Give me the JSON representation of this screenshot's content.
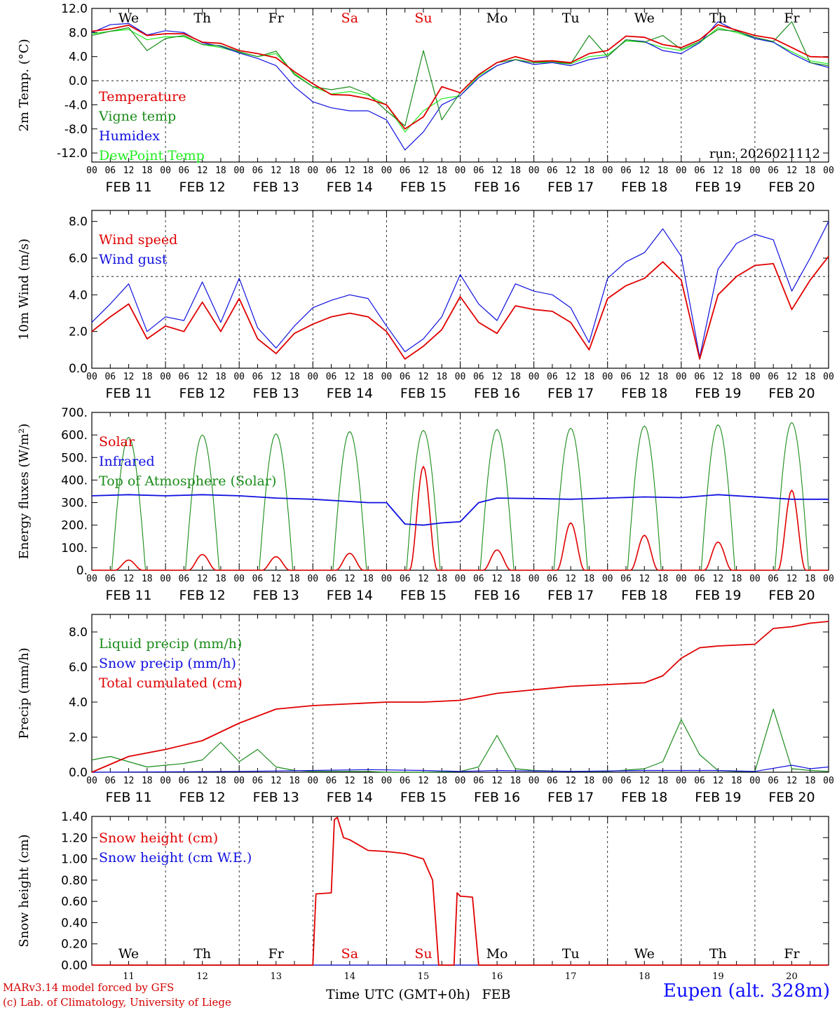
{
  "location": "Eupen (alt. 328m)",
  "credits": [
    "MARv3.14 model forced by GFS",
    "(c) Lab. of Climatology, University of Liege"
  ],
  "run_label": "run: 2026021112",
  "x_axis_title": "Time UTC (GMT+0h)",
  "x_axis_month": "FEB",
  "weekday_labels": [
    "We",
    "Th",
    "Fr",
    "Sa",
    "Su",
    "Mo",
    "Tu",
    "We",
    "Th",
    "Fr"
  ],
  "weekend_flags": [
    false,
    false,
    false,
    true,
    true,
    false,
    false,
    false,
    false,
    false
  ],
  "date_labels": [
    "FEB 11",
    "FEB 12",
    "FEB 13",
    "FEB 14",
    "FEB 15",
    "FEB 16",
    "FEB 17",
    "FEB 18",
    "FEB 19",
    "FEB 20"
  ],
  "day_numbers": [
    "11",
    "12",
    "13",
    "14",
    "15",
    "16",
    "17",
    "18",
    "19",
    "20"
  ],
  "hour_ticks": [
    "00",
    "06",
    "12",
    "18"
  ],
  "colors": {
    "red": "#e00000",
    "green": "#1a8c1a",
    "blue": "#1010e0",
    "lightgreen": "#22ee22",
    "axis": "#000000"
  },
  "chart_data": [
    {
      "id": "temperature",
      "type": "line",
      "ylabel": "2m Temp. (°C)",
      "ylim": [
        -13.5,
        12.0
      ],
      "ytick_labels": [
        "12.0",
        "8.0",
        "4.0",
        "0.0",
        "-4.0",
        "-8.0",
        "-12.0"
      ],
      "ytick_values": [
        12,
        8,
        4,
        0,
        -4,
        -8,
        -12
      ],
      "ref_line": 0,
      "x_unit": "hours from 2026-02-11 00 UTC",
      "series": [
        {
          "name": "Temperature",
          "color": "red",
          "x": [
            0,
            6,
            12,
            18,
            24,
            30,
            36,
            42,
            48,
            54,
            60,
            66,
            72,
            78,
            84,
            90,
            96,
            102,
            108,
            114,
            120,
            126,
            132,
            138,
            144,
            150,
            156,
            162,
            168,
            174,
            180,
            186,
            192,
            198,
            204,
            210,
            216,
            222,
            228,
            234,
            240
          ],
          "values": [
            8.2,
            8.6,
            9.2,
            7.5,
            7.8,
            7.8,
            6.4,
            6.2,
            5.0,
            4.5,
            3.8,
            1.5,
            -0.5,
            -2.3,
            -2.4,
            -3.0,
            -4.0,
            -8.0,
            -6.0,
            -1.0,
            -2.0,
            1.0,
            3.0,
            4.0,
            3.2,
            3.3,
            3.0,
            4.5,
            5.0,
            7.4,
            7.2,
            6.0,
            5.5,
            6.8,
            9.3,
            8.4,
            7.5,
            7.0,
            5.5,
            4.0,
            3.9
          ]
        },
        {
          "name": "Vigne temp",
          "color": "green",
          "x": [
            0,
            6,
            12,
            18,
            24,
            30,
            36,
            42,
            48,
            54,
            60,
            66,
            72,
            78,
            84,
            90,
            96,
            102,
            108,
            114,
            120,
            126,
            132,
            138,
            144,
            150,
            156,
            162,
            168,
            174,
            180,
            186,
            192,
            198,
            204,
            210,
            216,
            222,
            228,
            234,
            240
          ],
          "values": [
            7.5,
            8.2,
            8.8,
            5.0,
            7.0,
            7.5,
            6.0,
            5.8,
            4.8,
            4.0,
            4.9,
            1.0,
            -1.0,
            -1.5,
            -1.0,
            -2.2,
            -5.0,
            -7.5,
            5.0,
            -6.5,
            -2.0,
            1.0,
            3.0,
            3.5,
            3.0,
            3.2,
            2.8,
            7.5,
            4.0,
            6.8,
            6.4,
            7.5,
            5.2,
            6.5,
            8.5,
            8.2,
            7.2,
            6.5,
            9.8,
            3.0,
            2.5
          ]
        },
        {
          "name": "Humidex",
          "color": "blue",
          "x": [
            0,
            6,
            12,
            18,
            24,
            30,
            36,
            42,
            48,
            54,
            60,
            66,
            72,
            78,
            84,
            90,
            96,
            102,
            108,
            114,
            120,
            126,
            132,
            138,
            144,
            150,
            156,
            162,
            168,
            174,
            180,
            186,
            192,
            198,
            204,
            210,
            216,
            222,
            228,
            234,
            240
          ],
          "values": [
            8.0,
            9.3,
            9.5,
            7.6,
            8.3,
            8.0,
            6.3,
            5.7,
            4.6,
            3.7,
            2.5,
            -1.0,
            -3.5,
            -4.5,
            -5.0,
            -5.0,
            -6.5,
            -11.5,
            -8.5,
            -4.0,
            -2.5,
            0.5,
            2.5,
            3.5,
            2.7,
            3.0,
            2.5,
            3.5,
            4.0,
            6.8,
            6.5,
            5.0,
            4.5,
            6.3,
            9.8,
            8.3,
            7.0,
            6.4,
            4.5,
            3.0,
            2.2
          ]
        },
        {
          "name": "DewPoint Temp",
          "color": "lightgreen",
          "x": [
            0,
            6,
            12,
            18,
            24,
            30,
            36,
            42,
            48,
            54,
            60,
            66,
            72,
            78,
            84,
            90,
            96,
            102,
            108,
            114,
            120,
            126,
            132,
            138,
            144,
            150,
            156,
            162,
            168,
            174,
            180,
            186,
            192,
            198,
            204,
            210,
            216,
            222,
            228,
            234,
            240
          ],
          "values": [
            7.8,
            8.2,
            8.5,
            6.8,
            7.3,
            7.3,
            6.0,
            5.5,
            4.7,
            4.0,
            4.5,
            1.2,
            -1.0,
            -2.2,
            -1.8,
            -2.4,
            -4.0,
            -8.5,
            -5.0,
            -3.0,
            -2.5,
            0.8,
            2.5,
            3.5,
            3.0,
            3.0,
            2.8,
            4.0,
            4.3,
            6.6,
            6.4,
            5.5,
            5.0,
            6.3,
            8.8,
            8.0,
            7.0,
            6.4,
            4.8,
            3.3,
            2.8
          ]
        }
      ]
    },
    {
      "id": "wind",
      "type": "line",
      "ylabel": "10m Wind (m/s)",
      "ylim": [
        0,
        8.6
      ],
      "ytick_labels": [
        "8.0",
        "6.0",
        "4.0",
        "2.0",
        "0.0"
      ],
      "ytick_values": [
        8,
        6,
        4,
        2,
        0
      ],
      "ref_line": 5,
      "series": [
        {
          "name": "Wind speed",
          "color": "red",
          "x": [
            0,
            6,
            12,
            18,
            24,
            30,
            36,
            42,
            48,
            54,
            60,
            66,
            72,
            78,
            84,
            90,
            96,
            102,
            108,
            114,
            120,
            126,
            132,
            138,
            144,
            150,
            156,
            162,
            168,
            174,
            180,
            186,
            192,
            198,
            204,
            210,
            216,
            222,
            228,
            234,
            240
          ],
          "values": [
            2.0,
            2.8,
            3.5,
            1.6,
            2.3,
            2.0,
            3.6,
            2.0,
            3.8,
            1.6,
            0.8,
            1.9,
            2.4,
            2.8,
            3.0,
            2.8,
            2.0,
            0.5,
            1.2,
            2.1,
            3.9,
            2.5,
            1.9,
            3.4,
            3.2,
            3.1,
            2.5,
            1.0,
            3.8,
            4.5,
            4.9,
            5.8,
            4.8,
            0.5,
            4.0,
            5.0,
            5.6,
            5.7,
            3.2,
            4.8,
            6.1
          ]
        },
        {
          "name": "Wind gust",
          "color": "blue",
          "x": [
            0,
            6,
            12,
            18,
            24,
            30,
            36,
            42,
            48,
            54,
            60,
            66,
            72,
            78,
            84,
            90,
            96,
            102,
            108,
            114,
            120,
            126,
            132,
            138,
            144,
            150,
            156,
            162,
            168,
            174,
            180,
            186,
            192,
            198,
            204,
            210,
            216,
            222,
            228,
            234,
            240
          ],
          "values": [
            2.5,
            3.5,
            4.6,
            2.0,
            2.8,
            2.6,
            4.7,
            2.5,
            4.9,
            2.2,
            1.1,
            2.3,
            3.3,
            3.7,
            4.0,
            3.8,
            2.3,
            0.9,
            1.6,
            2.8,
            5.1,
            3.5,
            2.6,
            4.6,
            4.2,
            4.0,
            3.3,
            1.4,
            4.9,
            5.8,
            6.3,
            7.6,
            6.1,
            0.6,
            5.4,
            6.8,
            7.3,
            7.0,
            4.2,
            6.0,
            8.0
          ]
        }
      ]
    },
    {
      "id": "energy",
      "type": "line",
      "ylabel": "Energy fluxes (W/m²)",
      "ylim": [
        0,
        700
      ],
      "ytick_labels": [
        "700.",
        "600.",
        "500.",
        "400.",
        "300.",
        "200.",
        "100.",
        "0."
      ],
      "ytick_values": [
        700,
        600,
        500,
        400,
        300,
        200,
        100,
        0
      ],
      "series": [
        {
          "name": "Solar",
          "color": "red",
          "daily_peaks": [
            45,
            70,
            60,
            75,
            460,
            90,
            210,
            155,
            125,
            355
          ]
        },
        {
          "name": "Infrared",
          "color": "blue",
          "x": [
            0,
            12,
            24,
            36,
            48,
            60,
            72,
            84,
            90,
            96,
            102,
            108,
            114,
            120,
            126,
            132,
            144,
            156,
            168,
            180,
            192,
            204,
            216,
            228,
            240
          ],
          "values": [
            330,
            335,
            330,
            335,
            330,
            320,
            315,
            305,
            300,
            300,
            205,
            200,
            210,
            215,
            300,
            320,
            318,
            315,
            320,
            325,
            322,
            335,
            325,
            315,
            315
          ]
        },
        {
          "name": "Top of Atmosphere (Solar)",
          "color": "green",
          "daily_peaks": [
            590,
            600,
            605,
            615,
            620,
            625,
            630,
            640,
            645,
            655
          ]
        }
      ]
    },
    {
      "id": "precip",
      "type": "line",
      "ylabel": "Precip (mm/h)",
      "ylim": [
        0,
        9.0
      ],
      "ytick_labels": [
        "8.0",
        "6.0",
        "4.0",
        "2.0",
        "0.0"
      ],
      "ytick_values": [
        8,
        6,
        4,
        2,
        0
      ],
      "series": [
        {
          "name": "Liquid precip (mm/h)",
          "color": "green",
          "x": [
            0,
            6,
            12,
            18,
            24,
            30,
            36,
            42,
            48,
            54,
            60,
            66,
            72,
            78,
            84,
            90,
            96,
            108,
            120,
            126,
            132,
            138,
            144,
            156,
            168,
            180,
            186,
            192,
            198,
            204,
            210,
            216,
            222,
            228,
            234,
            240
          ],
          "values": [
            0.7,
            0.9,
            0.6,
            0.3,
            0.4,
            0.5,
            0.7,
            1.7,
            0.6,
            1.3,
            0.3,
            0.1,
            0.05,
            0.05,
            0.05,
            0.05,
            0.0,
            0.0,
            0.05,
            0.3,
            2.1,
            0.2,
            0.1,
            0.05,
            0.05,
            0.2,
            0.6,
            3.0,
            1.0,
            0.1,
            0.05,
            0.05,
            3.6,
            0.2,
            0.1,
            0.05
          ]
        },
        {
          "name": "Snow precip (mm/h)",
          "color": "blue",
          "x": [
            0,
            48,
            72,
            90,
            108,
            120,
            132,
            156,
            180,
            204,
            216,
            228,
            234,
            240
          ],
          "values": [
            0.0,
            0.05,
            0.1,
            0.15,
            0.1,
            0.05,
            0.1,
            0.05,
            0.1,
            0.1,
            0.05,
            0.4,
            0.2,
            0.3
          ]
        },
        {
          "name": "Total cumulated (cm)",
          "color": "red",
          "x": [
            0,
            12,
            24,
            36,
            48,
            60,
            72,
            84,
            96,
            108,
            120,
            132,
            144,
            156,
            168,
            180,
            186,
            192,
            198,
            204,
            216,
            222,
            228,
            234,
            240
          ],
          "values": [
            0.0,
            0.9,
            1.3,
            1.8,
            2.8,
            3.6,
            3.8,
            3.9,
            4.0,
            4.0,
            4.1,
            4.5,
            4.7,
            4.9,
            5.0,
            5.1,
            5.5,
            6.5,
            7.1,
            7.2,
            7.3,
            8.2,
            8.3,
            8.5,
            8.6
          ]
        }
      ]
    },
    {
      "id": "snow",
      "type": "line",
      "ylabel": "Snow height (cm)",
      "ylim": [
        0,
        1.4
      ],
      "ytick_labels": [
        "1.40",
        "1.20",
        "1.00",
        "0.80",
        "0.60",
        "0.40",
        "0.20",
        "0.00"
      ],
      "ytick_values": [
        1.4,
        1.2,
        1.0,
        0.8,
        0.6,
        0.4,
        0.2,
        0.0
      ],
      "series": [
        {
          "name": "Snow height (cm)",
          "color": "red",
          "x": [
            0,
            72,
            73,
            78,
            79,
            80,
            82,
            84,
            90,
            96,
            102,
            108,
            111,
            112,
            113,
            114,
            118,
            119,
            120,
            124,
            126,
            240
          ],
          "values": [
            0,
            0,
            0.67,
            0.68,
            1.37,
            1.39,
            1.2,
            1.18,
            1.08,
            1.07,
            1.05,
            1.0,
            0.8,
            0.4,
            0.0,
            0.0,
            0.0,
            0.68,
            0.65,
            0.64,
            0.0,
            0.0
          ]
        },
        {
          "name": "Snow height (cm W.E.)",
          "color": "blue",
          "x": [
            0,
            240
          ],
          "values": [
            0,
            0
          ]
        }
      ]
    }
  ]
}
